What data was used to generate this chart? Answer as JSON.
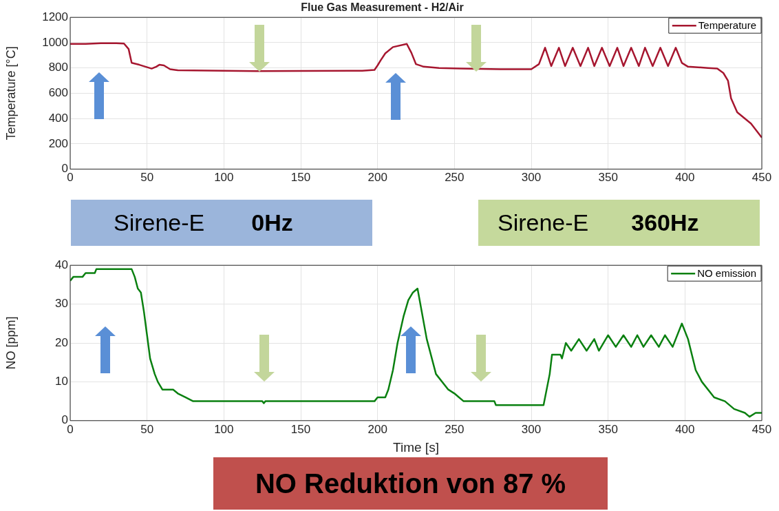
{
  "chart_data": [
    {
      "type": "line",
      "title": "Flue Gas Measurement - H2/Air",
      "ylabel": "Temperature [°C]",
      "xlim": [
        0,
        450
      ],
      "xticks": [
        0,
        50,
        100,
        150,
        200,
        250,
        300,
        350,
        400,
        450
      ],
      "ylim": [
        0,
        1200
      ],
      "yticks": [
        0,
        200,
        400,
        600,
        800,
        1000,
        1200
      ],
      "grid": true,
      "legend": "top right",
      "annotations": [
        "Sirene-E",
        "0Hz",
        "Sirene-E",
        "360Hz"
      ],
      "series": [
        {
          "name": "Temperature",
          "color": "#a6162f",
          "x": [
            0,
            10,
            20,
            30,
            35,
            38,
            40,
            45,
            49,
            53,
            56,
            58,
            61,
            65,
            70,
            100,
            121,
            150,
            190,
            198,
            200,
            202,
            205,
            210,
            219,
            222,
            225,
            230,
            240,
            254,
            280,
            300,
            305,
            309,
            313,
            318,
            322,
            327,
            332,
            337,
            341,
            346,
            351,
            356,
            360,
            365,
            370,
            374,
            379,
            384,
            389,
            394,
            398,
            402,
            415,
            421,
            425,
            428,
            430,
            434,
            443,
            450
          ],
          "values": [
            990,
            990,
            995,
            995,
            993,
            950,
            840,
            825,
            810,
            795,
            810,
            825,
            820,
            790,
            782,
            778,
            775,
            777,
            778,
            785,
            820,
            860,
            915,
            965,
            990,
            920,
            830,
            810,
            800,
            795,
            790,
            790,
            830,
            960,
            815,
            960,
            815,
            960,
            815,
            960,
            815,
            960,
            815,
            960,
            815,
            960,
            815,
            960,
            815,
            960,
            815,
            960,
            840,
            810,
            800,
            795,
            760,
            700,
            560,
            450,
            360,
            250
          ]
        }
      ]
    },
    {
      "type": "line",
      "xlabel": "Time [s]",
      "ylabel": "NO [ppm]",
      "xlim": [
        0,
        450
      ],
      "xticks": [
        0,
        50,
        100,
        150,
        200,
        250,
        300,
        350,
        400,
        450
      ],
      "ylim": [
        0,
        40
      ],
      "yticks": [
        0,
        10,
        20,
        30,
        40
      ],
      "grid": true,
      "legend": "top right",
      "annotations": [
        "NO Reduktion von 87 %"
      ],
      "series": [
        {
          "name": "NO emission",
          "color": "#0a8010",
          "x": [
            0,
            2,
            8,
            10,
            16,
            17,
            40,
            42,
            44,
            46,
            48,
            50,
            52,
            55,
            57,
            60,
            67,
            70,
            75,
            80,
            125,
            126,
            127,
            128,
            198,
            200,
            205,
            207,
            210,
            213,
            217,
            220,
            223,
            226,
            232,
            238,
            246,
            250,
            253,
            256,
            276,
            277,
            308,
            312,
            313.5,
            319,
            320,
            322.5,
            326,
            331,
            336,
            341,
            344,
            350,
            355,
            360,
            365,
            369,
            373,
            378,
            383,
            387,
            392,
            398,
            402,
            407,
            411,
            419,
            426,
            432,
            439,
            442,
            446,
            450
          ],
          "values": [
            36,
            37,
            37,
            38,
            38,
            39,
            39,
            37,
            34,
            33,
            28,
            22,
            16,
            12,
            10,
            8,
            8,
            7,
            6,
            5,
            5,
            4.5,
            5,
            5,
            5,
            6,
            6,
            8,
            13,
            20,
            27,
            31,
            33,
            34,
            21,
            12,
            8,
            7,
            6,
            5,
            5,
            4,
            4,
            12,
            17,
            17,
            16,
            20,
            18,
            21,
            18,
            21,
            18,
            22,
            19,
            22,
            19,
            22,
            19,
            22,
            19,
            22,
            19,
            25,
            21,
            13,
            10,
            6,
            5,
            3,
            2,
            1,
            2,
            2
          ]
        }
      ]
    }
  ]
}
